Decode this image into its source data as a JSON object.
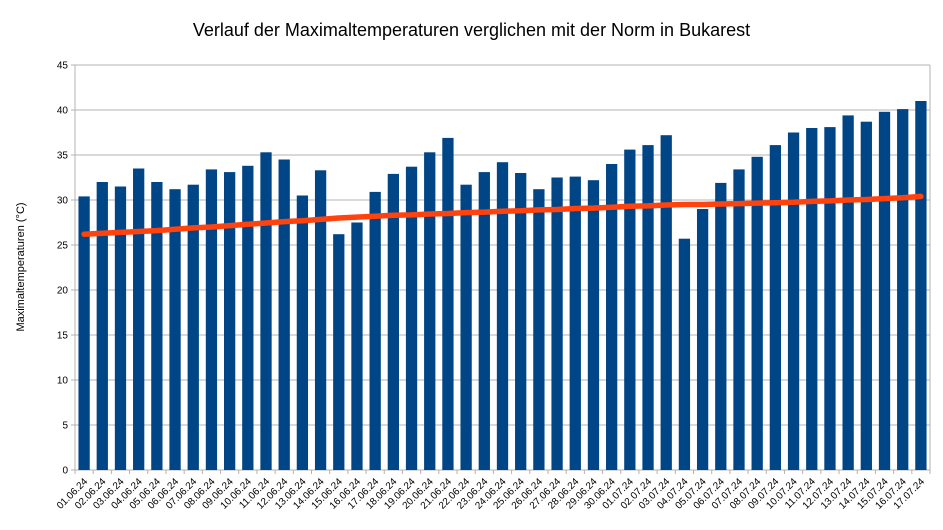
{
  "chart_data": {
    "type": "bar",
    "title": "Verlauf der Maximaltemperaturen verglichen mit der Norm in Bukarest",
    "xlabel": "",
    "ylabel": "Maximaltemperaturen (°C)",
    "ylim": [
      0,
      45
    ],
    "y_ticks": [
      0,
      5,
      10,
      15,
      20,
      25,
      30,
      35,
      40,
      45
    ],
    "grid": true,
    "legend": "none",
    "grid_color": "#b3b3b3",
    "axis_color": "#b3b3b3",
    "categories": [
      "01.06.24",
      "02.06.24",
      "03.06.24",
      "04.06.24",
      "05.06.24",
      "06.06.24",
      "07.06.24",
      "08.06.24",
      "09.06.24",
      "10.06.24",
      "11.06.24",
      "12.06.24",
      "13.06.24",
      "14.06.24",
      "15.06.24",
      "16.06.24",
      "17.06.24",
      "18.06.24",
      "19.06.24",
      "20.06.24",
      "21.06.24",
      "22.06.24",
      "23.06.24",
      "24.06.24",
      "25.06.24",
      "26.06.24",
      "27.06.24",
      "28.06.24",
      "29.06.24",
      "30.06.24",
      "01.07.24",
      "02.07.24",
      "03.07.24",
      "04.07.24",
      "05.07.24",
      "06.07.24",
      "07.07.24",
      "08.07.24",
      "09.07.24",
      "10.07.24",
      "11.07.24",
      "12.07.24",
      "13.07.24",
      "14.07.24",
      "15.07.24",
      "16.07.24",
      "17.07.24"
    ],
    "series": [
      {
        "name": "Maximaltemperaturen",
        "type": "bar",
        "color": "#004586",
        "values": [
          30.4,
          32.0,
          31.5,
          33.5,
          32.0,
          31.2,
          31.7,
          33.4,
          33.1,
          33.8,
          35.3,
          34.5,
          30.5,
          33.3,
          26.2,
          27.5,
          30.9,
          32.9,
          33.7,
          35.3,
          36.9,
          31.7,
          33.1,
          34.2,
          33.0,
          31.2,
          32.5,
          32.6,
          32.2,
          34.0,
          35.6,
          36.1,
          37.2,
          25.7,
          29.0,
          31.9,
          33.4,
          34.8,
          36.1,
          37.5,
          38.0,
          38.1,
          39.4,
          38.7,
          39.8,
          40.1,
          41.0
        ]
      },
      {
        "name": "Norm",
        "type": "line",
        "color": "#ff420e",
        "values": [
          26.2,
          26.3,
          26.4,
          26.5,
          26.6,
          26.75,
          26.9,
          27.0,
          27.15,
          27.3,
          27.45,
          27.6,
          27.7,
          27.85,
          28.0,
          28.1,
          28.2,
          28.3,
          28.35,
          28.45,
          28.5,
          28.6,
          28.65,
          28.75,
          28.8,
          28.9,
          28.95,
          29.05,
          29.1,
          29.2,
          29.3,
          29.35,
          29.45,
          29.5,
          29.5,
          29.55,
          29.6,
          29.65,
          29.7,
          29.75,
          29.85,
          29.9,
          30.0,
          30.05,
          30.15,
          30.25,
          30.4
        ]
      }
    ]
  }
}
